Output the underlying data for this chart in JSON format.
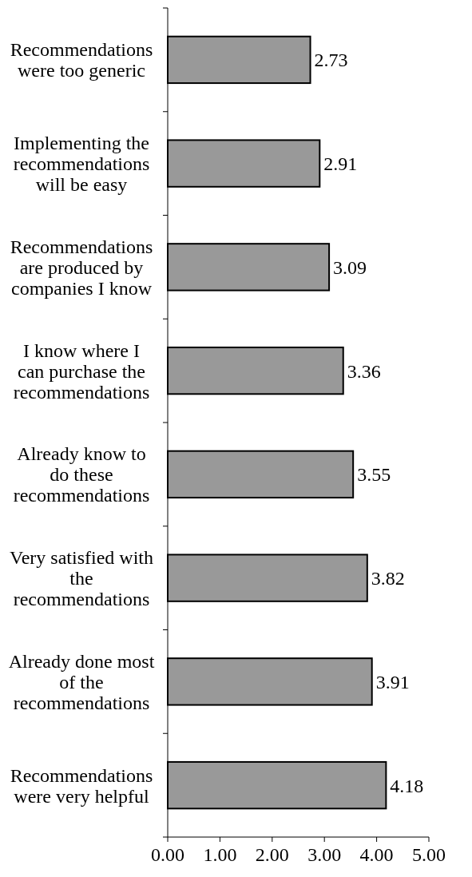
{
  "chart_data": {
    "type": "bar",
    "orientation": "horizontal",
    "categories": [
      "Recommendations were too generic",
      "Implementing the recommendations will be easy",
      "Recommendations are produced by companies I know",
      "I know where I can purchase the recommendations",
      "Already know to do these recommendations",
      "Very satisfied with the recommendations",
      "Already done most of the recommendations",
      "Recommendations were very helpful"
    ],
    "values": [
      2.73,
      2.91,
      3.09,
      3.36,
      3.55,
      3.82,
      3.91,
      4.18
    ],
    "color": "#999999",
    "xlim": [
      0,
      5
    ],
    "xticks": [
      {
        "value": 0,
        "label": "0.00"
      },
      {
        "value": 1,
        "label": "1.00"
      },
      {
        "value": 2,
        "label": "2.00"
      },
      {
        "value": 3,
        "label": "3.00"
      },
      {
        "value": 4,
        "label": "4.00"
      },
      {
        "value": 5,
        "label": "5.00"
      }
    ],
    "data_labels": true,
    "grid": false
  }
}
